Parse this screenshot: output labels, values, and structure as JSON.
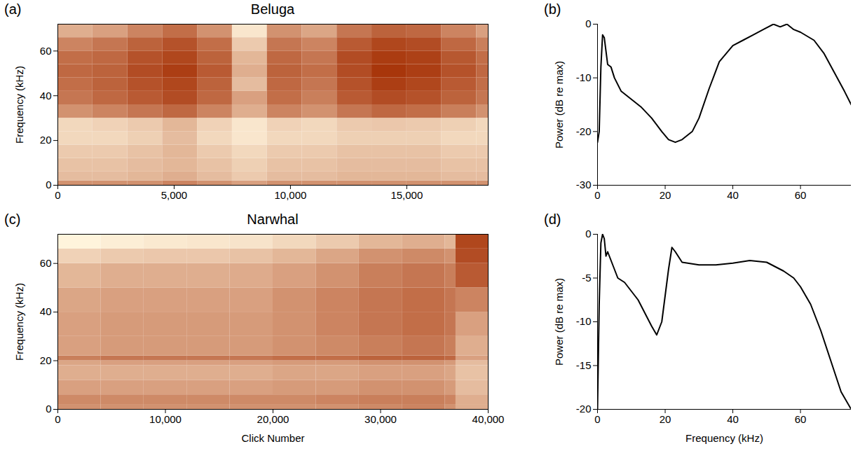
{
  "chart_data": [
    {
      "type": "heatmap",
      "panel": "(a)",
      "title": "Beluga",
      "ylabel": "Frequency (kHz)",
      "xlim": [
        0,
        18500
      ],
      "ylim": [
        0,
        72
      ],
      "xticks": [
        0,
        {
          "value": 5000,
          "label": "5,000"
        },
        {
          "value": 10000,
          "label": "10,000"
        },
        {
          "value": 15000,
          "label": "15,000"
        }
      ],
      "yticks": [
        0,
        20,
        40,
        60
      ],
      "x_edges": [
        0,
        1500,
        3000,
        4500,
        6000,
        7500,
        9000,
        10500,
        12000,
        13500,
        15000,
        16500,
        18000,
        18500
      ],
      "y_edges": [
        0,
        2,
        6,
        12,
        18,
        24,
        30,
        36,
        42,
        48,
        54,
        60,
        66,
        72
      ],
      "cells": [
        [
          0.55,
          0.55,
          0.55,
          0.6,
          0.55,
          0.5,
          0.55,
          0.55,
          0.55,
          0.55,
          0.55,
          0.55,
          0.55
        ],
        [
          0.4,
          0.4,
          0.42,
          0.45,
          0.4,
          0.35,
          0.4,
          0.4,
          0.42,
          0.42,
          0.42,
          0.4,
          0.4
        ],
        [
          0.38,
          0.38,
          0.4,
          0.42,
          0.38,
          0.33,
          0.38,
          0.38,
          0.4,
          0.4,
          0.4,
          0.38,
          0.38
        ],
        [
          0.35,
          0.35,
          0.38,
          0.42,
          0.35,
          0.3,
          0.35,
          0.35,
          0.38,
          0.38,
          0.38,
          0.35,
          0.35
        ],
        [
          0.3,
          0.3,
          0.33,
          0.4,
          0.3,
          0.25,
          0.3,
          0.3,
          0.33,
          0.33,
          0.33,
          0.3,
          0.3
        ],
        [
          0.3,
          0.32,
          0.35,
          0.42,
          0.32,
          0.25,
          0.32,
          0.3,
          0.35,
          0.36,
          0.35,
          0.33,
          0.3
        ],
        [
          0.55,
          0.6,
          0.65,
          0.7,
          0.6,
          0.45,
          0.6,
          0.55,
          0.65,
          0.7,
          0.68,
          0.62,
          0.55
        ],
        [
          0.65,
          0.7,
          0.75,
          0.8,
          0.7,
          0.5,
          0.68,
          0.62,
          0.75,
          0.8,
          0.78,
          0.72,
          0.65
        ],
        [
          0.68,
          0.72,
          0.78,
          0.82,
          0.72,
          0.4,
          0.7,
          0.65,
          0.78,
          0.85,
          0.82,
          0.75,
          0.68
        ],
        [
          0.7,
          0.72,
          0.8,
          0.85,
          0.75,
          0.45,
          0.72,
          0.68,
          0.8,
          0.88,
          0.85,
          0.78,
          0.7
        ],
        [
          0.68,
          0.7,
          0.78,
          0.82,
          0.72,
          0.42,
          0.7,
          0.65,
          0.8,
          0.86,
          0.84,
          0.76,
          0.68
        ],
        [
          0.6,
          0.65,
          0.72,
          0.78,
          0.68,
          0.35,
          0.65,
          0.6,
          0.75,
          0.82,
          0.8,
          0.7,
          0.62
        ],
        [
          0.45,
          0.5,
          0.6,
          0.68,
          0.55,
          0.25,
          0.55,
          0.48,
          0.65,
          0.72,
          0.7,
          0.6,
          0.5
        ]
      ]
    },
    {
      "type": "line",
      "panel": "(b)",
      "ylabel": "Power (dB re max)",
      "color": "#000000",
      "xlim": [
        0,
        75
      ],
      "ylim": [
        -30,
        0
      ],
      "xticks": [
        0,
        20,
        40,
        60
      ],
      "yticks": [
        -30,
        -20,
        -10,
        0
      ],
      "x": [
        0,
        0.5,
        1,
        1.5,
        2,
        2.5,
        3,
        4,
        5,
        7,
        10,
        13,
        16,
        19,
        21,
        23,
        25,
        28,
        30,
        33,
        36,
        38,
        40,
        43,
        46,
        49,
        52,
        54,
        56,
        58,
        60,
        64,
        67,
        70,
        73,
        75
      ],
      "values": [
        -22,
        -20,
        -8,
        -2,
        -2.5,
        -5,
        -7.5,
        -8,
        -10,
        -12.5,
        -14,
        -15.5,
        -17.5,
        -20,
        -21.5,
        -22,
        -21.5,
        -20,
        -17.5,
        -12,
        -7,
        -5.5,
        -4,
        -3,
        -2,
        -1,
        0,
        -0.5,
        0,
        -1,
        -1.5,
        -3,
        -5.5,
        -9,
        -12.5,
        -15
      ]
    },
    {
      "type": "heatmap",
      "panel": "(c)",
      "title": "Narwhal",
      "xlabel": "Click Number",
      "ylabel": "Frequency (kHz)",
      "xlim": [
        0,
        40000
      ],
      "ylim": [
        0,
        72
      ],
      "xticks": [
        0,
        {
          "value": 10000,
          "label": "10,000"
        },
        {
          "value": 20000,
          "label": "20,000"
        },
        {
          "value": 30000,
          "label": "30,000"
        },
        {
          "value": 40000,
          "label": "40,000"
        }
      ],
      "yticks": [
        0,
        20,
        40,
        60
      ],
      "x_edges": [
        0,
        4000,
        8000,
        12000,
        16000,
        20000,
        24000,
        28000,
        32000,
        36000,
        37000,
        40000
      ],
      "y_edges": [
        0,
        2,
        6,
        12,
        18,
        20,
        22,
        30,
        40,
        50,
        60,
        66,
        72
      ],
      "cells": [
        [
          0.55,
          0.55,
          0.55,
          0.55,
          0.55,
          0.55,
          0.55,
          0.58,
          0.6,
          0.55,
          0.45
        ],
        [
          0.58,
          0.58,
          0.58,
          0.58,
          0.58,
          0.58,
          0.6,
          0.62,
          0.62,
          0.6,
          0.45
        ],
        [
          0.5,
          0.5,
          0.5,
          0.5,
          0.5,
          0.52,
          0.52,
          0.55,
          0.55,
          0.52,
          0.4
        ],
        [
          0.45,
          0.45,
          0.45,
          0.45,
          0.45,
          0.48,
          0.48,
          0.5,
          0.5,
          0.48,
          0.38
        ],
        [
          0.48,
          0.5,
          0.5,
          0.5,
          0.5,
          0.52,
          0.52,
          0.55,
          0.55,
          0.52,
          0.4
        ],
        [
          0.62,
          0.65,
          0.65,
          0.65,
          0.65,
          0.68,
          0.68,
          0.72,
          0.72,
          0.7,
          0.5
        ],
        [
          0.5,
          0.52,
          0.52,
          0.52,
          0.52,
          0.55,
          0.58,
          0.62,
          0.65,
          0.62,
          0.45
        ],
        [
          0.5,
          0.52,
          0.52,
          0.52,
          0.52,
          0.55,
          0.6,
          0.65,
          0.68,
          0.65,
          0.5
        ],
        [
          0.48,
          0.5,
          0.5,
          0.5,
          0.5,
          0.55,
          0.6,
          0.65,
          0.68,
          0.65,
          0.6
        ],
        [
          0.42,
          0.45,
          0.45,
          0.45,
          0.46,
          0.5,
          0.55,
          0.62,
          0.65,
          0.62,
          0.75
        ],
        [
          0.32,
          0.35,
          0.36,
          0.36,
          0.38,
          0.42,
          0.48,
          0.55,
          0.58,
          0.55,
          0.8
        ],
        [
          0.2,
          0.22,
          0.24,
          0.25,
          0.26,
          0.3,
          0.35,
          0.42,
          0.45,
          0.42,
          0.82
        ]
      ]
    },
    {
      "type": "line",
      "panel": "(d)",
      "xlabel": "Frequency (kHz)",
      "ylabel": "Power (dB re max)",
      "color": "#000000",
      "xlim": [
        0,
        75
      ],
      "ylim": [
        -20,
        0
      ],
      "xticks": [
        0,
        20,
        40,
        60
      ],
      "yticks": [
        -20,
        -15,
        -10,
        -5,
        0
      ],
      "x": [
        0,
        0.5,
        1,
        1.5,
        2,
        2.5,
        3,
        4,
        5,
        6,
        8,
        10,
        12,
        14,
        16,
        17.5,
        19,
        20,
        21,
        22,
        23,
        25,
        30,
        35,
        40,
        45,
        50,
        55,
        58,
        60,
        63,
        66,
        69,
        72,
        75
      ],
      "values": [
        -20,
        -8,
        -1,
        0,
        -0.5,
        -2.5,
        -2,
        -3,
        -4,
        -5,
        -5.5,
        -6.5,
        -7.5,
        -9,
        -10.5,
        -11.5,
        -10,
        -7,
        -4,
        -1.5,
        -2,
        -3.2,
        -3.5,
        -3.5,
        -3.3,
        -3,
        -3.2,
        -4.2,
        -5,
        -6,
        -8,
        -11,
        -14.5,
        -18,
        -20
      ]
    }
  ]
}
